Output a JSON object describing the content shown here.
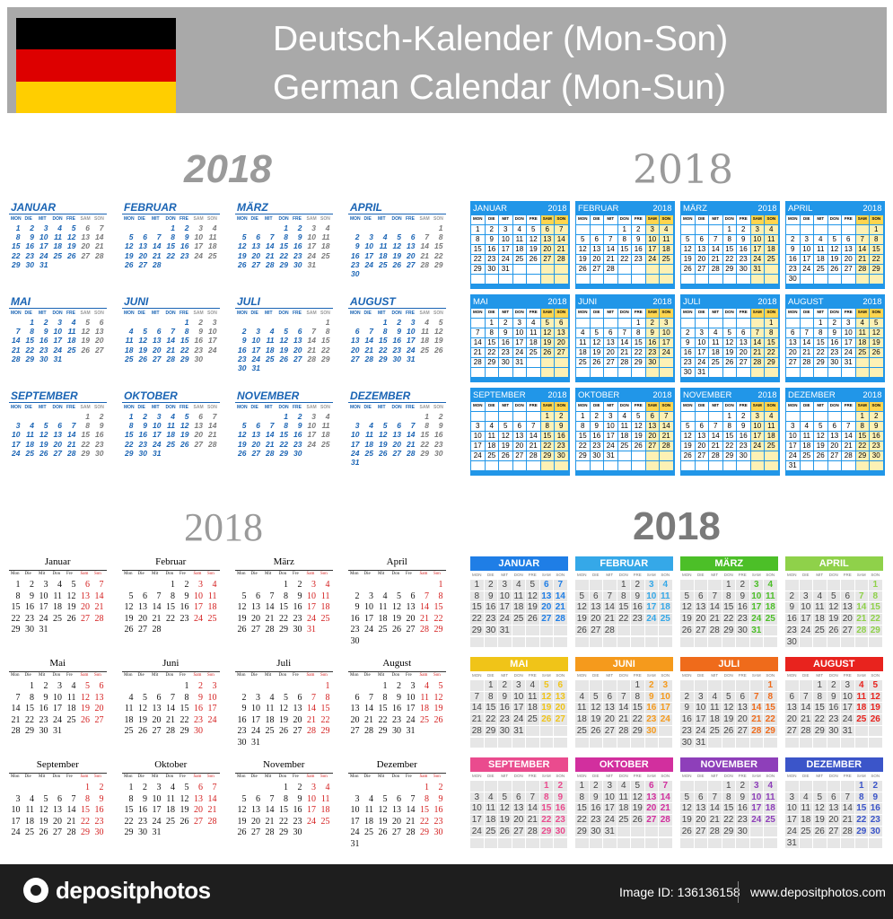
{
  "header": {
    "title_de": "Deutsch-Kalender (Mon-Son)",
    "title_en": "German Calendar (Mon-Sun)",
    "flag": [
      "#000000",
      "#dd0000",
      "#ffce00"
    ]
  },
  "year": "2018",
  "calendar": {
    "year": 2018,
    "first_weekday_index": [
      0,
      3,
      3,
      6,
      1,
      4,
      6,
      2,
      5,
      0,
      3,
      5
    ],
    "days_in_month": [
      31,
      28,
      31,
      30,
      31,
      30,
      31,
      31,
      30,
      31,
      30,
      31
    ]
  },
  "months_caps": [
    "JANUAR",
    "FEBRUAR",
    "MÄRZ",
    "APRIL",
    "MAI",
    "JUNI",
    "JULI",
    "AUGUST",
    "SEPTEMBER",
    "OKTOBER",
    "NOVEMBER",
    "DEZEMBER"
  ],
  "months_title": [
    "Januar",
    "Februar",
    "März",
    "April",
    "Mai",
    "Juni",
    "Juli",
    "August",
    "September",
    "Oktober",
    "November",
    "Dezember"
  ],
  "weekdays_caps": [
    "MON",
    "DIE",
    "MIT",
    "DON",
    "FRE",
    "SAM",
    "SON"
  ],
  "weekdays_title": [
    "Mon",
    "Die",
    "Mit",
    "Don",
    "Fre",
    "Sam",
    "Son"
  ],
  "colors": {
    "blue_title": "#1a64b4",
    "grid_blue": "#2196e8",
    "weekend_yellow": "#ffd54f",
    "red_weekend": "#d42020",
    "month_colors": [
      "#1f7ee6",
      "#35a8e8",
      "#4cbf28",
      "#8fd14a",
      "#f0c418",
      "#f59a1c",
      "#ef6b1b",
      "#e8231e",
      "#ea4b8e",
      "#d22f9e",
      "#8e3fba",
      "#3b55c9"
    ]
  },
  "footer": {
    "brand": "depositphotos",
    "image_id": "Image ID: 136136158",
    "website": "www.depositphotos.com"
  }
}
